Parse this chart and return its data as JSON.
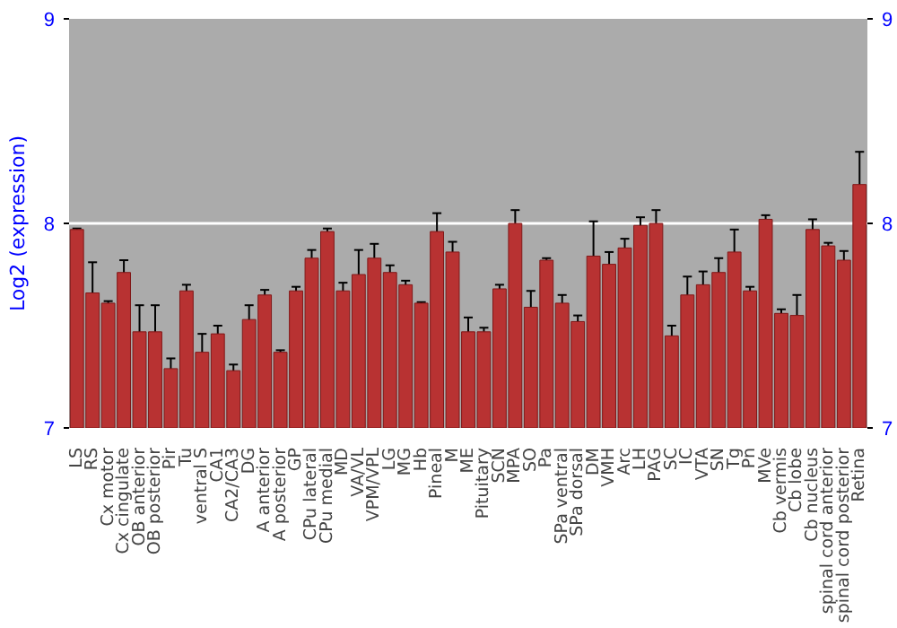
{
  "chart_data": {
    "type": "bar",
    "ylabel": "Log2 (expression)",
    "categories": [
      "LS",
      "RS",
      "Cx motor",
      "Cx cingulate",
      "OB anterior",
      "OB posterior",
      "Pir",
      "Tu",
      "ventral S",
      "CA1",
      "CA2/CA3",
      "DG",
      "A anterior",
      "A posterior",
      "GP",
      "CPu lateral",
      "CPu medial",
      "MD",
      "VA/VL",
      "VPM/VPL",
      "LG",
      "MG",
      "Hb",
      "Pineal",
      "M",
      "ME",
      "Pituitary",
      "SCN",
      "MPA",
      "SO",
      "Pa",
      "SPa ventral",
      "SPa dorsal",
      "DM",
      "VMH",
      "Arc",
      "LH",
      "PAG",
      "SC",
      "IC",
      "VTA",
      "SN",
      "Tg",
      "Pn",
      "MVe",
      "Cb vermis",
      "Cb lobe",
      "Cb nucleus",
      "spinal cord anterior",
      "spinal cord posterior",
      "Retina"
    ],
    "series": [
      {
        "color": "#b83232",
        "values": [
          7.97,
          7.66,
          7.61,
          7.76,
          7.47,
          7.47,
          7.29,
          7.67,
          7.37,
          7.46,
          7.28,
          7.53,
          7.65,
          7.37,
          7.67,
          7.83,
          7.96,
          7.67,
          7.75,
          7.83,
          7.76,
          7.7,
          7.61,
          7.96,
          7.86,
          7.47,
          7.47,
          7.68,
          8.0,
          7.59,
          7.82,
          7.61,
          7.52,
          7.84,
          7.8,
          7.88,
          7.99,
          8.0,
          7.45,
          7.65,
          7.7,
          7.76,
          7.86,
          7.67,
          8.02,
          7.56,
          7.55,
          7.97,
          7.89,
          7.82,
          8.19
        ],
        "errors": [
          0.005,
          0.15,
          0.01,
          0.06,
          0.13,
          0.13,
          0.05,
          0.03,
          0.09,
          0.04,
          0.03,
          0.07,
          0.025,
          0.01,
          0.02,
          0.04,
          0.015,
          0.04,
          0.12,
          0.07,
          0.035,
          0.02,
          0.005,
          0.09,
          0.05,
          0.07,
          0.02,
          0.02,
          0.065,
          0.08,
          0.01,
          0.04,
          0.03,
          0.17,
          0.06,
          0.045,
          0.04,
          0.065,
          0.05,
          0.09,
          0.065,
          0.07,
          0.11,
          0.02,
          0.02,
          0.02,
          0.1,
          0.05,
          0.015,
          0.045,
          0.16
        ]
      }
    ],
    "ylim": [
      7,
      9
    ],
    "yticks": [
      7,
      8,
      9
    ],
    "y2lim": [
      7,
      9
    ],
    "y2ticks": [
      7,
      8,
      9
    ],
    "grid": "y"
  }
}
